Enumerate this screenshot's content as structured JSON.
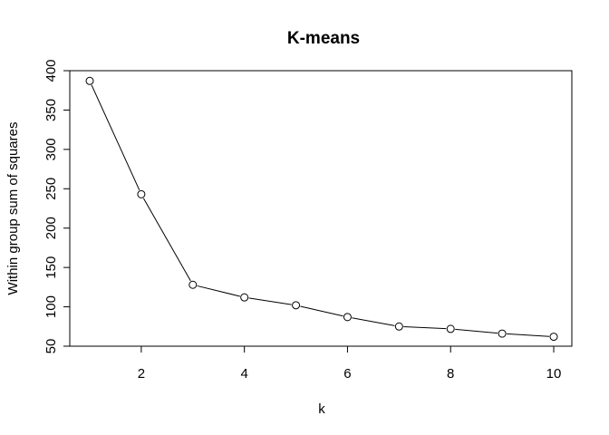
{
  "chart_data": {
    "type": "line",
    "title": "K-means",
    "xlabel": "k",
    "ylabel": "Within group sum of squares",
    "x": [
      1,
      2,
      3,
      4,
      5,
      6,
      7,
      8,
      9,
      10
    ],
    "series": [
      {
        "name": "Within group sum of squares",
        "values": [
          387,
          243,
          128,
          112,
          102,
          87,
          75,
          72,
          66,
          62
        ]
      }
    ],
    "xlim": [
      1,
      10
    ],
    "ylim": [
      50,
      400
    ],
    "x_ticks": [
      2,
      4,
      6,
      8,
      10
    ],
    "y_ticks": [
      50,
      100,
      150,
      200,
      250,
      300,
      350,
      400
    ],
    "grid": false,
    "legend": "none",
    "marker": "open-circle",
    "line_color": "#000000"
  }
}
